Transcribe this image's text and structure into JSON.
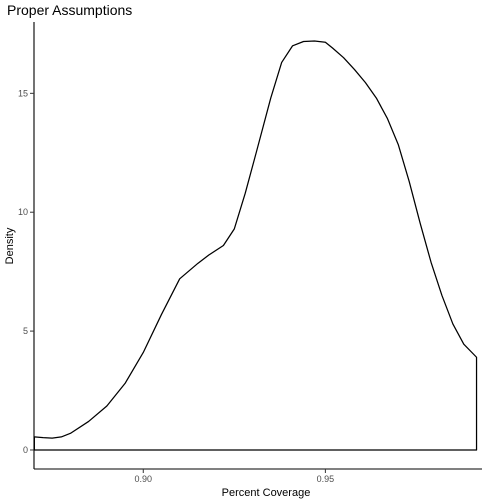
{
  "chart_data": {
    "type": "line",
    "title": "Proper Assumptions",
    "xlabel": "Percent Coverage",
    "ylabel": "Density",
    "xlim": [
      0.87,
      0.993
    ],
    "ylim": [
      -0.8,
      18.0
    ],
    "x_ticks": [
      0.9,
      0.95
    ],
    "x_tick_labels": [
      "0.90",
      "0.95"
    ],
    "y_ticks": [
      0,
      5,
      10,
      15
    ],
    "y_tick_labels": [
      "0",
      "5",
      "10",
      "15"
    ],
    "grid": false,
    "series": [
      {
        "x": [
          0.8701,
          0.8725,
          0.875,
          0.8775,
          0.88,
          0.885,
          0.89,
          0.895,
          0.9,
          0.905,
          0.91,
          0.915,
          0.918,
          0.922,
          0.925,
          0.928,
          0.931,
          0.935,
          0.938,
          0.941,
          0.944,
          0.947,
          0.95,
          0.952,
          0.955,
          0.958,
          0.961,
          0.964,
          0.967,
          0.97,
          0.973,
          0.976,
          0.979,
          0.982,
          0.985,
          0.988,
          0.9915
        ],
        "y": [
          0.55,
          0.52,
          0.5,
          0.55,
          0.7,
          1.2,
          1.85,
          2.8,
          4.1,
          5.7,
          7.2,
          7.85,
          8.2,
          8.6,
          9.3,
          10.8,
          12.5,
          14.8,
          16.3,
          17.0,
          17.18,
          17.2,
          17.15,
          16.9,
          16.5,
          16.0,
          15.45,
          14.8,
          13.95,
          12.85,
          11.3,
          9.55,
          7.9,
          6.5,
          5.3,
          4.45,
          3.9
        ]
      }
    ]
  }
}
